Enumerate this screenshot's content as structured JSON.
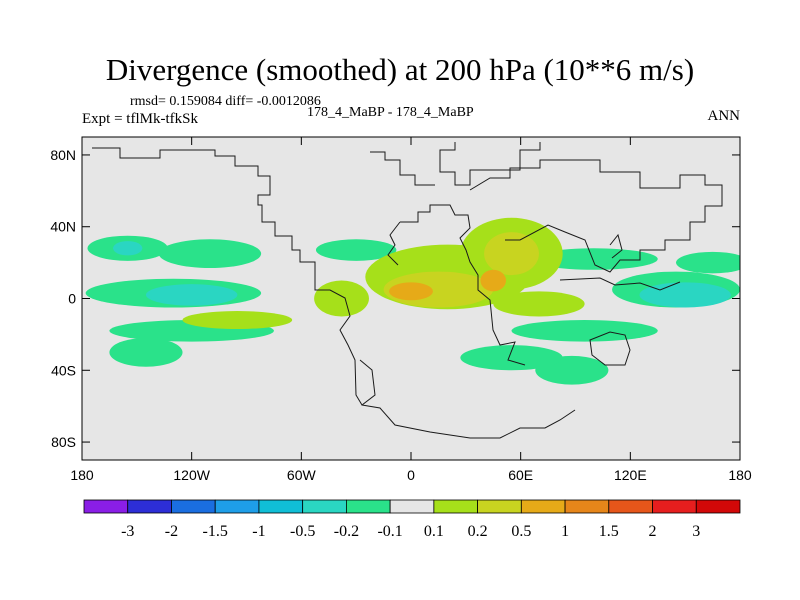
{
  "title": "Divergence (smoothed) at 200 hPa (10**6 m/s)",
  "stats": "rmsd= 0.159084 diff= -0.0012086",
  "expt": "Expt = tflMk-tfkSk",
  "cases": "178_4_MaBP - 178_4_MaBP",
  "period": "ANN",
  "colors": {
    "background": "#ffffff",
    "ocean_fill": "#e6e6e6",
    "coast": "#1a1a1a"
  },
  "chart_data": {
    "type": "heatmap",
    "title": "Divergence (smoothed) at 200 hPa (10**6 m/s)",
    "x_axis": {
      "range": [
        -180,
        180
      ],
      "ticks": [
        -180,
        -120,
        -60,
        0,
        60,
        120,
        180
      ],
      "tick_labels": [
        "180",
        "120W",
        "60W",
        "0",
        "60E",
        "120E",
        "180"
      ]
    },
    "y_axis": {
      "range": [
        -90,
        90
      ],
      "ticks": [
        80,
        40,
        0,
        -40,
        -80
      ],
      "tick_labels": [
        "80N",
        "40N",
        "0",
        "40S",
        "80S"
      ]
    },
    "colorbar": {
      "labels": [
        "-3",
        "-2",
        "-1.5",
        "-1",
        "-0.5",
        "-0.2",
        "-0.1",
        "0.1",
        "0.2",
        "0.5",
        "1",
        "1.5",
        "2",
        "3"
      ],
      "colors": [
        "#8a1ee6",
        "#2d2ed6",
        "#1a6ee0",
        "#1e9ee8",
        "#10bed6",
        "#2ad6c2",
        "#2ae28a",
        "#e6e6e6",
        "#a6e01a",
        "#c8d420",
        "#e6aa18",
        "#e6861a",
        "#e6561a",
        "#e61e1e",
        "#d20808"
      ]
    },
    "regions": [
      {
        "level": "-0.1",
        "lon": -155,
        "lat": 28,
        "rlon": 22,
        "rlat": 7
      },
      {
        "level": "-0.1",
        "lon": -110,
        "lat": 25,
        "rlon": 28,
        "rlat": 8
      },
      {
        "level": "-0.1",
        "lon": -30,
        "lat": 27,
        "rlon": 22,
        "rlat": 6
      },
      {
        "level": "-0.1",
        "lon": -130,
        "lat": 3,
        "rlon": 48,
        "rlat": 8
      },
      {
        "level": "-0.1",
        "lon": -120,
        "lat": -18,
        "rlon": 45,
        "rlat": 6
      },
      {
        "level": "-0.1",
        "lon": -145,
        "lat": -30,
        "rlon": 20,
        "rlat": 8
      },
      {
        "level": "-0.1",
        "lon": 145,
        "lat": 5,
        "rlon": 35,
        "rlat": 10
      },
      {
        "level": "-0.1",
        "lon": 95,
        "lat": -18,
        "rlon": 40,
        "rlat": 6
      },
      {
        "level": "-0.1",
        "lon": 88,
        "lat": -40,
        "rlon": 20,
        "rlat": 8
      },
      {
        "level": "-0.1",
        "lon": 55,
        "lat": -33,
        "rlon": 28,
        "rlat": 7
      },
      {
        "level": "-0.1",
        "lon": 100,
        "lat": 22,
        "rlon": 35,
        "rlat": 6
      },
      {
        "level": "-0.1",
        "lon": 165,
        "lat": 20,
        "rlon": 20,
        "rlat": 6
      },
      {
        "level": "-0.2",
        "lon": -155,
        "lat": 28,
        "rlon": 8,
        "rlat": 4
      },
      {
        "level": "-0.2",
        "lon": -120,
        "lat": 2,
        "rlon": 25,
        "rlat": 6
      },
      {
        "level": "-0.2",
        "lon": 150,
        "lat": 2,
        "rlon": 25,
        "rlat": 7
      },
      {
        "level": "0.1",
        "lon": 20,
        "lat": 12,
        "rlon": 45,
        "rlat": 18
      },
      {
        "level": "0.1",
        "lon": 55,
        "lat": 25,
        "rlon": 28,
        "rlat": 20
      },
      {
        "level": "0.1",
        "lon": -38,
        "lat": 0,
        "rlon": 15,
        "rlat": 10
      },
      {
        "level": "0.1",
        "lon": -95,
        "lat": -12,
        "rlon": 30,
        "rlat": 5
      },
      {
        "level": "0.1",
        "lon": 70,
        "lat": -3,
        "rlon": 25,
        "rlat": 7
      },
      {
        "level": "0.2",
        "lon": 15,
        "lat": 5,
        "rlon": 30,
        "rlat": 10
      },
      {
        "level": "0.2",
        "lon": 55,
        "lat": 25,
        "rlon": 15,
        "rlat": 12
      },
      {
        "level": "0.5",
        "lon": 0,
        "lat": 4,
        "rlon": 12,
        "rlat": 5
      },
      {
        "level": "0.5",
        "lon": 45,
        "lat": 10,
        "rlon": 7,
        "rlat": 6
      }
    ]
  }
}
